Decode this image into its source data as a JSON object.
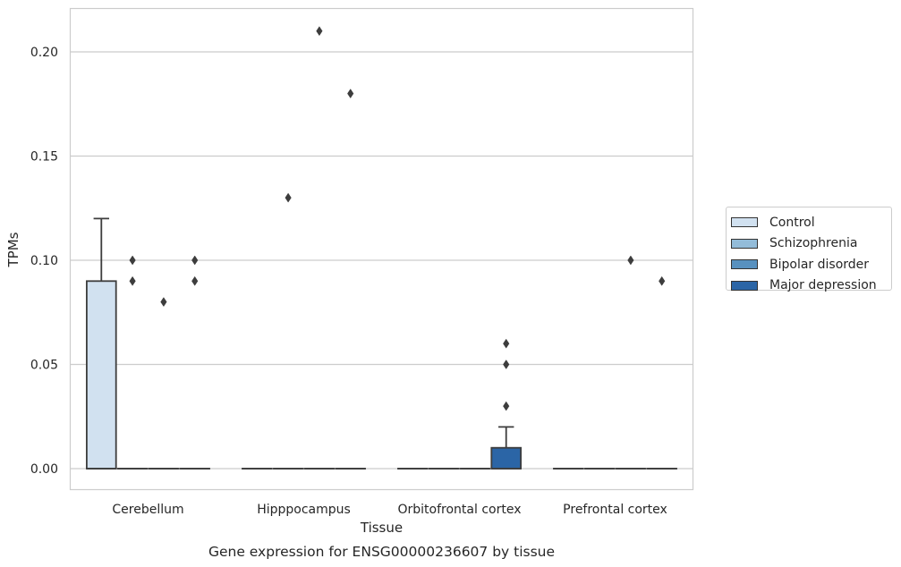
{
  "chart_data": {
    "type": "box",
    "title": "Gene expression for ENSG00000236607 by tissue",
    "xlabel": "Tissue",
    "ylabel": "TPMs",
    "categories": [
      "Cerebellum",
      "Hipppocampus",
      "Orbitofrontal cortex",
      "Prefrontal cortex"
    ],
    "ylim": [
      -0.01,
      0.22
    ],
    "yticks": [
      0.0,
      0.05,
      0.1,
      0.15,
      0.2
    ],
    "ytick_labels": [
      "0.00",
      "0.05",
      "0.10",
      "0.15",
      "0.20"
    ],
    "grid": true,
    "legend_position": "right",
    "series": [
      {
        "name": "Control",
        "color": "#d1e1f0",
        "boxes": [
          {
            "q1": 0.0,
            "median": 0.0,
            "q3": 0.09,
            "whisker_low": 0.0,
            "whisker_high": 0.12,
            "outliers": []
          },
          {
            "q1": 0.0,
            "median": 0.0,
            "q3": 0.0,
            "whisker_low": 0.0,
            "whisker_high": 0.0,
            "outliers": []
          },
          {
            "q1": 0.0,
            "median": 0.0,
            "q3": 0.0,
            "whisker_low": 0.0,
            "whisker_high": 0.0,
            "outliers": []
          },
          {
            "q1": 0.0,
            "median": 0.0,
            "q3": 0.0,
            "whisker_low": 0.0,
            "whisker_high": 0.0,
            "outliers": []
          }
        ]
      },
      {
        "name": "Schizophrenia",
        "color": "#93bcd9",
        "boxes": [
          {
            "q1": 0.0,
            "median": 0.0,
            "q3": 0.0,
            "whisker_low": 0.0,
            "whisker_high": 0.0,
            "outliers": [
              0.1,
              0.09
            ]
          },
          {
            "q1": 0.0,
            "median": 0.0,
            "q3": 0.0,
            "whisker_low": 0.0,
            "whisker_high": 0.0,
            "outliers": [
              0.13
            ]
          },
          {
            "q1": 0.0,
            "median": 0.0,
            "q3": 0.0,
            "whisker_low": 0.0,
            "whisker_high": 0.0,
            "outliers": []
          },
          {
            "q1": 0.0,
            "median": 0.0,
            "q3": 0.0,
            "whisker_low": 0.0,
            "whisker_high": 0.0,
            "outliers": []
          }
        ]
      },
      {
        "name": "Bipolar disorder",
        "color": "#5891bf",
        "boxes": [
          {
            "q1": 0.0,
            "median": 0.0,
            "q3": 0.0,
            "whisker_low": 0.0,
            "whisker_high": 0.0,
            "outliers": [
              0.08
            ]
          },
          {
            "q1": 0.0,
            "median": 0.0,
            "q3": 0.0,
            "whisker_low": 0.0,
            "whisker_high": 0.0,
            "outliers": [
              0.21
            ]
          },
          {
            "q1": 0.0,
            "median": 0.0,
            "q3": 0.0,
            "whisker_low": 0.0,
            "whisker_high": 0.0,
            "outliers": []
          },
          {
            "q1": 0.0,
            "median": 0.0,
            "q3": 0.0,
            "whisker_low": 0.0,
            "whisker_high": 0.0,
            "outliers": [
              0.1
            ]
          }
        ]
      },
      {
        "name": "Major depression",
        "color": "#2b65a6",
        "boxes": [
          {
            "q1": 0.0,
            "median": 0.0,
            "q3": 0.0,
            "whisker_low": 0.0,
            "whisker_high": 0.0,
            "outliers": [
              0.1,
              0.09
            ]
          },
          {
            "q1": 0.0,
            "median": 0.0,
            "q3": 0.0,
            "whisker_low": 0.0,
            "whisker_high": 0.0,
            "outliers": [
              0.18
            ]
          },
          {
            "q1": 0.0,
            "median": 0.0,
            "q3": 0.01,
            "whisker_low": 0.0,
            "whisker_high": 0.02,
            "outliers": [
              0.06,
              0.05,
              0.03
            ]
          },
          {
            "q1": 0.0,
            "median": 0.0,
            "q3": 0.0,
            "whisker_low": 0.0,
            "whisker_high": 0.0,
            "outliers": [
              0.09
            ]
          }
        ]
      }
    ]
  }
}
